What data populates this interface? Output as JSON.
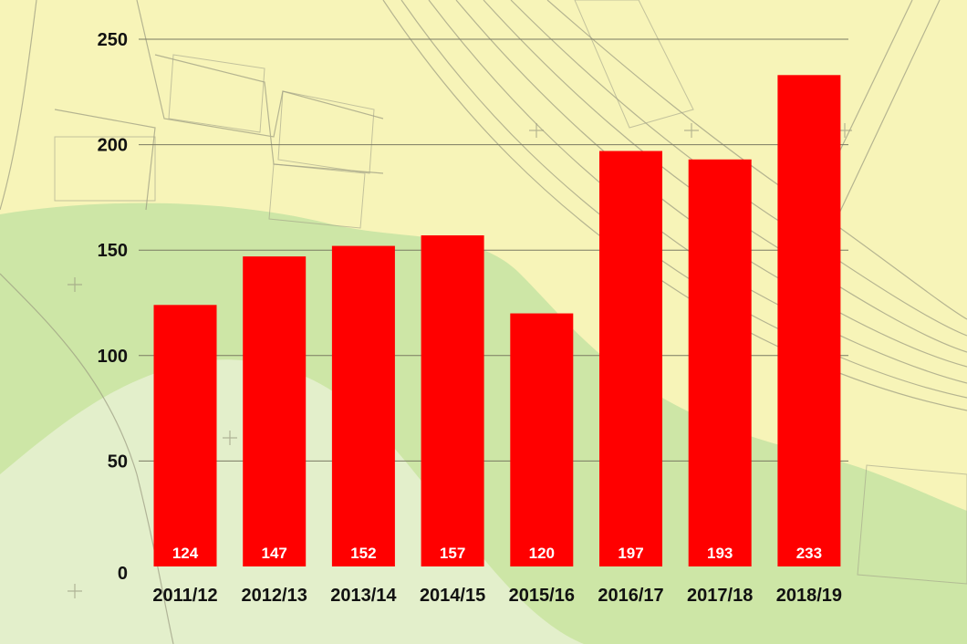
{
  "colors": {
    "bar": "#ff0000",
    "gridline": "#7a7a62",
    "map_yellow": "#f7f4b8",
    "map_green": "#cde6a6",
    "map_pale_green": "#e3efcb",
    "map_lines": "#9a9a80"
  },
  "chart_data": {
    "type": "bar",
    "categories": [
      "2011/12",
      "2012/13",
      "2013/14",
      "2014/15",
      "2015/16",
      "2016/17",
      "2017/18",
      "2018/19"
    ],
    "values": [
      124,
      147,
      152,
      157,
      120,
      197,
      193,
      233
    ],
    "ylim": [
      0,
      250
    ],
    "yticks": [
      0,
      50,
      100,
      150,
      200,
      250
    ],
    "grid": true,
    "legend": "none",
    "data_labels": true
  }
}
